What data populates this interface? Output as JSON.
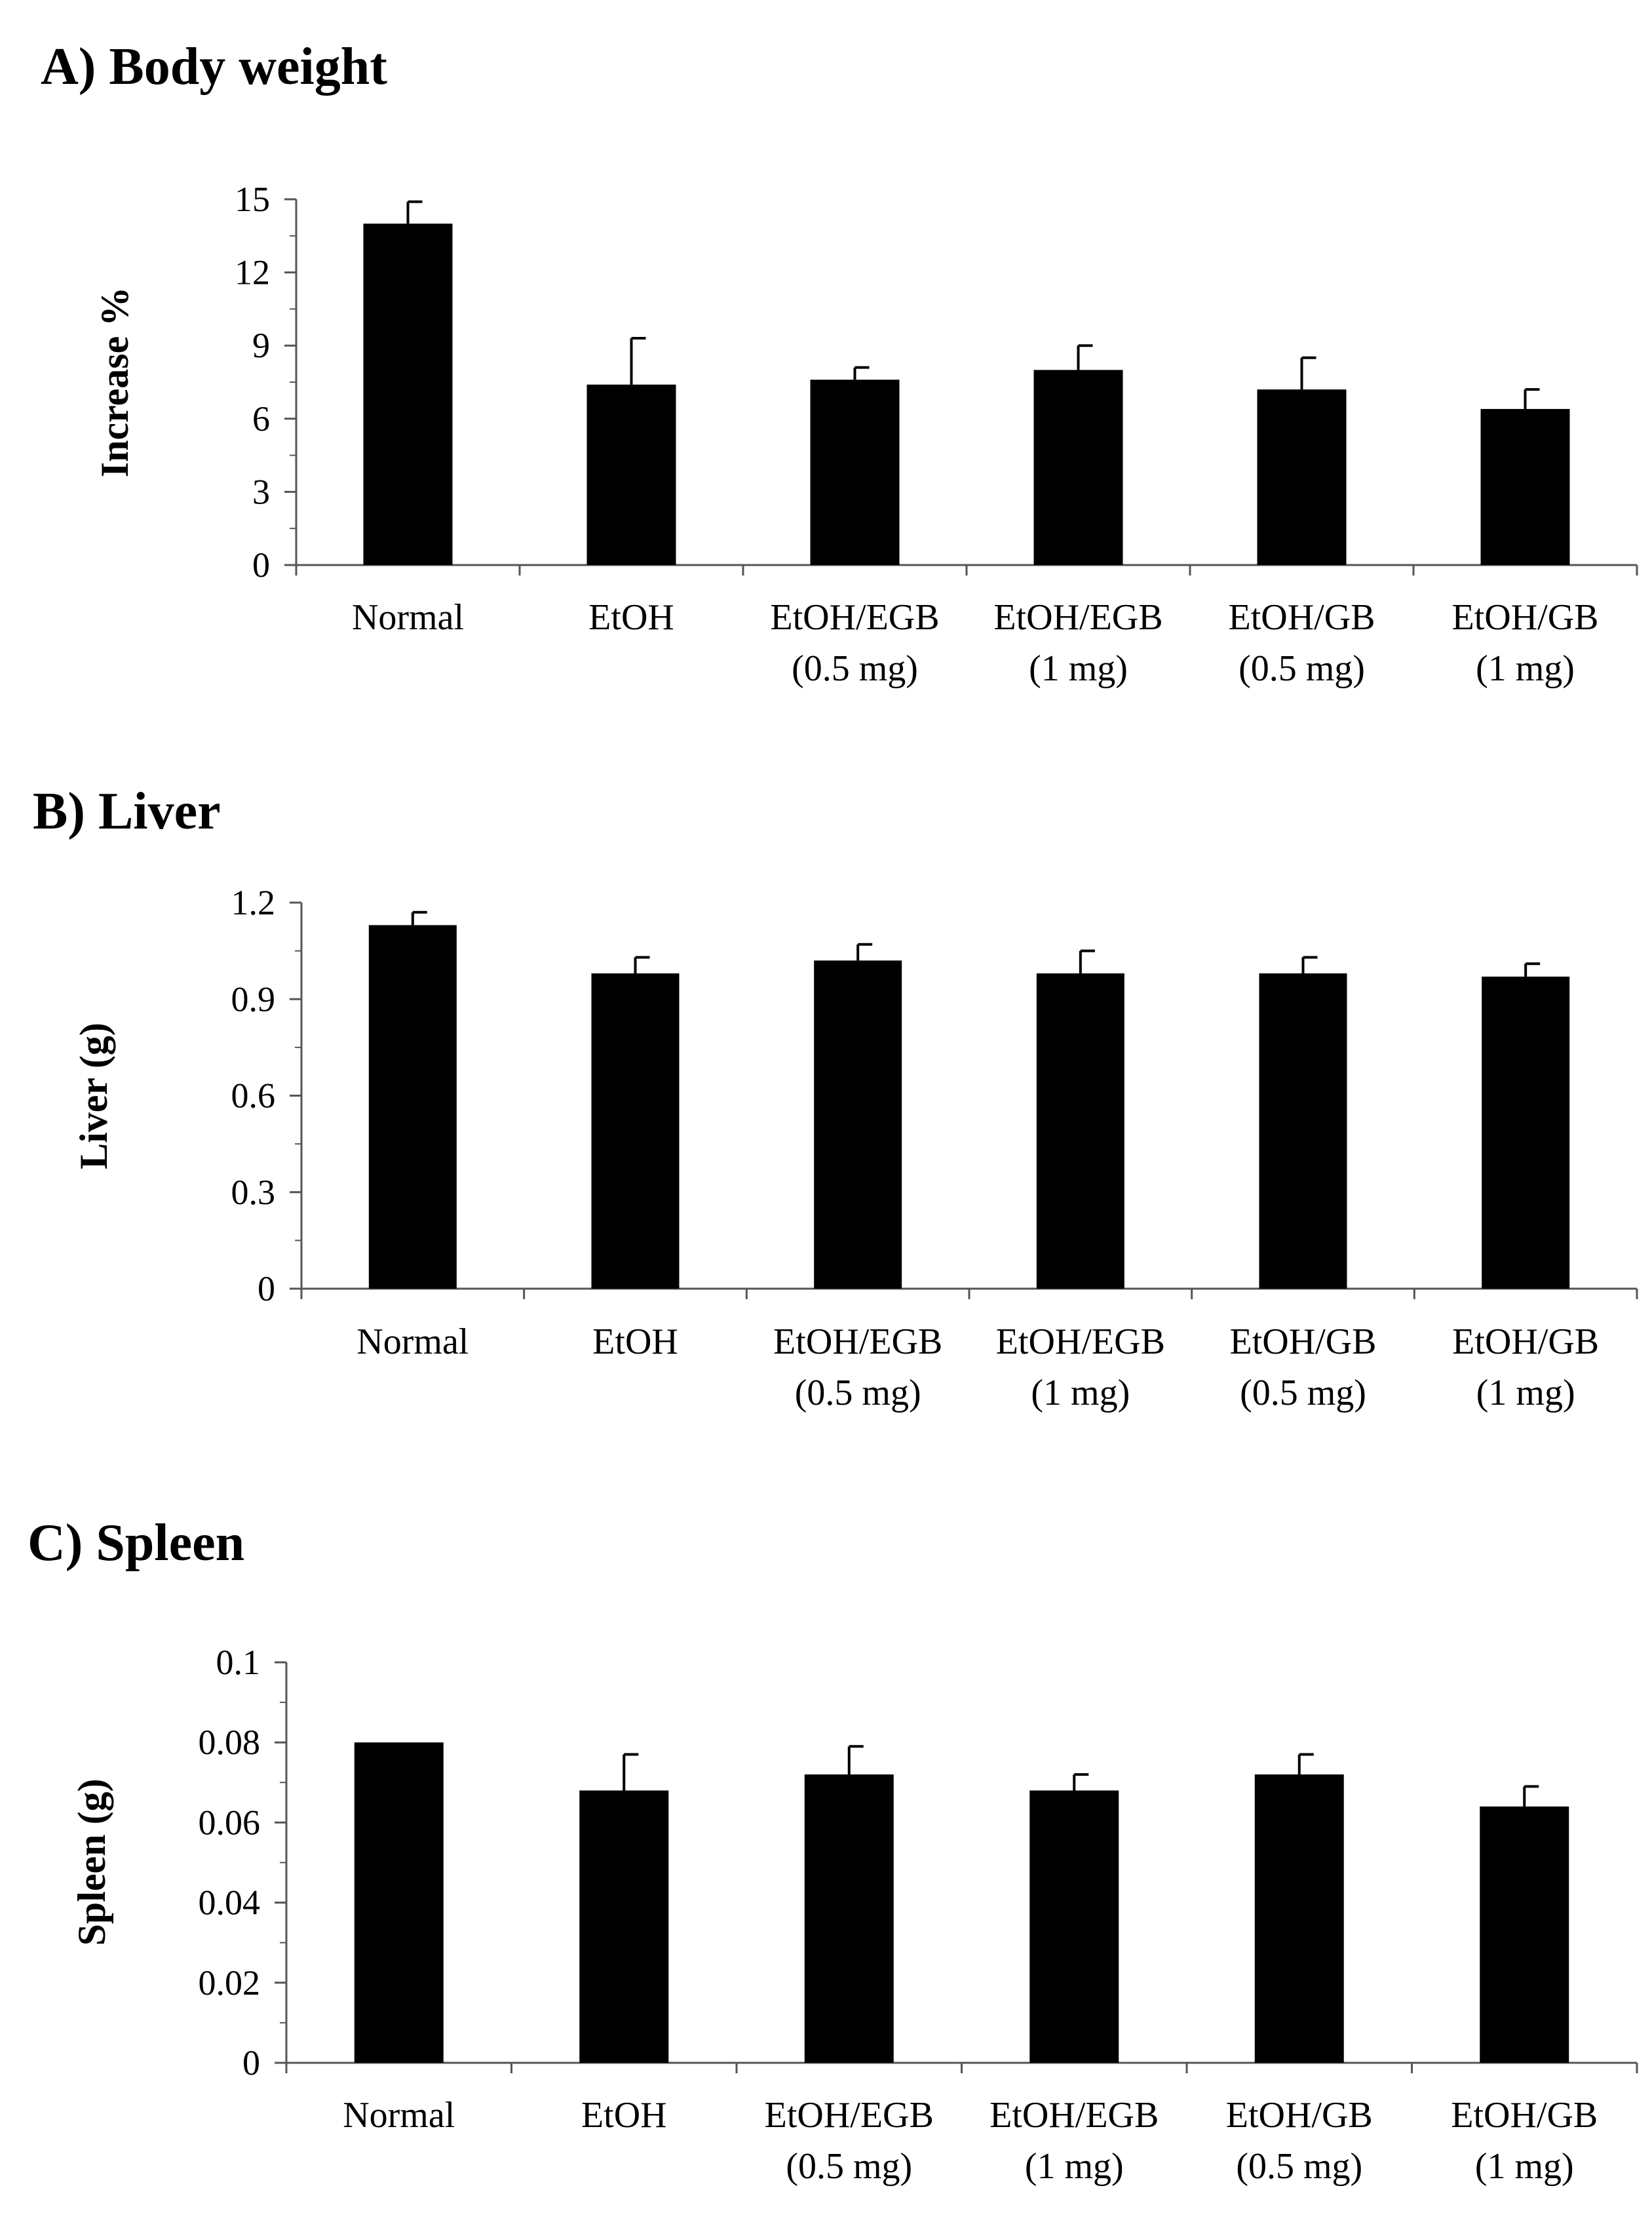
{
  "chart_data": [
    {
      "type": "bar",
      "title": "A) Body weight",
      "ylabel": "Increase %",
      "xlabel": "",
      "ylim": [
        0,
        15
      ],
      "yticks": [
        "0",
        "3",
        "6",
        "9",
        "12",
        "15"
      ],
      "yticks_values": [
        0,
        3,
        6,
        9,
        12,
        15
      ],
      "categories": [
        [
          "Normal"
        ],
        [
          "EtOH"
        ],
        [
          "EtOH/EGB",
          "(0.5 mg)"
        ],
        [
          "EtOH/EGB",
          "(1 mg)"
        ],
        [
          "EtOH/GB",
          "(0.5 mg)"
        ],
        [
          "EtOH/GB",
          "(1 mg)"
        ]
      ],
      "values": [
        14.0,
        7.4,
        7.6,
        8.0,
        7.2,
        6.4
      ],
      "errors": [
        0.9,
        1.9,
        0.5,
        1.0,
        1.3,
        0.8
      ],
      "bar_color": "#000000",
      "grid": false
    },
    {
      "type": "bar",
      "title": "B) Liver",
      "ylabel": "Liver (g)",
      "xlabel": "",
      "ylim": [
        0,
        1.2
      ],
      "yticks": [
        "0",
        "0.3",
        "0.6",
        "0.9",
        "1.2"
      ],
      "yticks_values": [
        0,
        0.3,
        0.6,
        0.9,
        1.2
      ],
      "categories": [
        [
          "Normal"
        ],
        [
          "EtOH"
        ],
        [
          "EtOH/EGB",
          "(0.5 mg)"
        ],
        [
          "EtOH/EGB",
          "(1 mg)"
        ],
        [
          "EtOH/GB",
          "(0.5 mg)"
        ],
        [
          "EtOH/GB",
          "(1 mg)"
        ]
      ],
      "values": [
        1.13,
        0.98,
        1.02,
        0.98,
        0.98,
        0.97
      ],
      "errors": [
        0.04,
        0.05,
        0.05,
        0.07,
        0.05,
        0.04
      ],
      "bar_color": "#000000",
      "grid": false
    },
    {
      "type": "bar",
      "title": "C) Spleen",
      "ylabel": "Spleen (g)",
      "xlabel": "",
      "ylim": [
        0,
        0.1
      ],
      "yticks": [
        "0",
        "0.02",
        "0.04",
        "0.06",
        "0.08",
        "0.1"
      ],
      "yticks_values": [
        0,
        0.02,
        0.04,
        0.06,
        0.08,
        0.1
      ],
      "categories": [
        [
          "Normal"
        ],
        [
          "EtOH"
        ],
        [
          "EtOH/EGB",
          "(0.5 mg)"
        ],
        [
          "EtOH/EGB",
          "(1 mg)"
        ],
        [
          "EtOH/GB",
          "(0.5 mg)"
        ],
        [
          "EtOH/GB",
          "(1 mg)"
        ]
      ],
      "values": [
        0.08,
        0.068,
        0.072,
        0.068,
        0.072,
        0.064
      ],
      "errors": [
        0.0,
        0.009,
        0.007,
        0.004,
        0.005,
        0.005
      ],
      "bar_color": "#000000",
      "grid": false
    }
  ]
}
